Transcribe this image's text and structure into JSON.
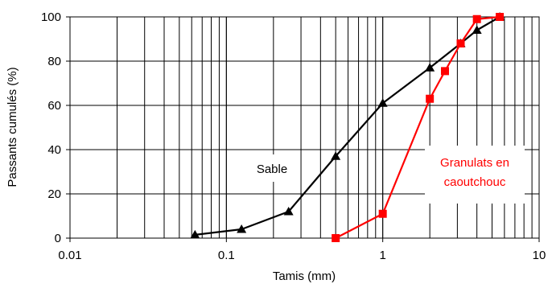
{
  "chart_data": {
    "type": "line",
    "xscale": "log",
    "xlim": [
      0.01,
      10
    ],
    "ylim": [
      0,
      100
    ],
    "xlabel": "Tamis (mm)",
    "ylabel": "Passants cumulés (%)",
    "x_tick_labels": [
      "0.01",
      "0.1",
      "1",
      "10"
    ],
    "y_tick_labels": [
      "0",
      "20",
      "40",
      "60",
      "80",
      "100"
    ],
    "grid": true,
    "series": [
      {
        "name": "Sable",
        "color": "#000000",
        "marker": "triangle",
        "points": [
          {
            "x": 0.063,
            "y": 1.5
          },
          {
            "x": 0.125,
            "y": 4
          },
          {
            "x": 0.25,
            "y": 12
          },
          {
            "x": 0.5,
            "y": 37
          },
          {
            "x": 1,
            "y": 61
          },
          {
            "x": 2,
            "y": 77
          },
          {
            "x": 3.15,
            "y": 88
          },
          {
            "x": 4,
            "y": 94
          },
          {
            "x": 5.6,
            "y": 100
          }
        ]
      },
      {
        "name": "Granulats en caoutchouc",
        "color": "#ff0000",
        "marker": "square",
        "points": [
          {
            "x": 0.5,
            "y": 0
          },
          {
            "x": 1,
            "y": 11
          },
          {
            "x": 2,
            "y": 63
          },
          {
            "x": 2.5,
            "y": 75.5
          },
          {
            "x": 3.15,
            "y": 88
          },
          {
            "x": 4,
            "y": 99
          },
          {
            "x": 5.6,
            "y": 100
          }
        ]
      }
    ],
    "annotations": {
      "sable": "Sable",
      "granulats_line1": "Granulats en",
      "granulats_line2": "caoutchouc"
    }
  }
}
